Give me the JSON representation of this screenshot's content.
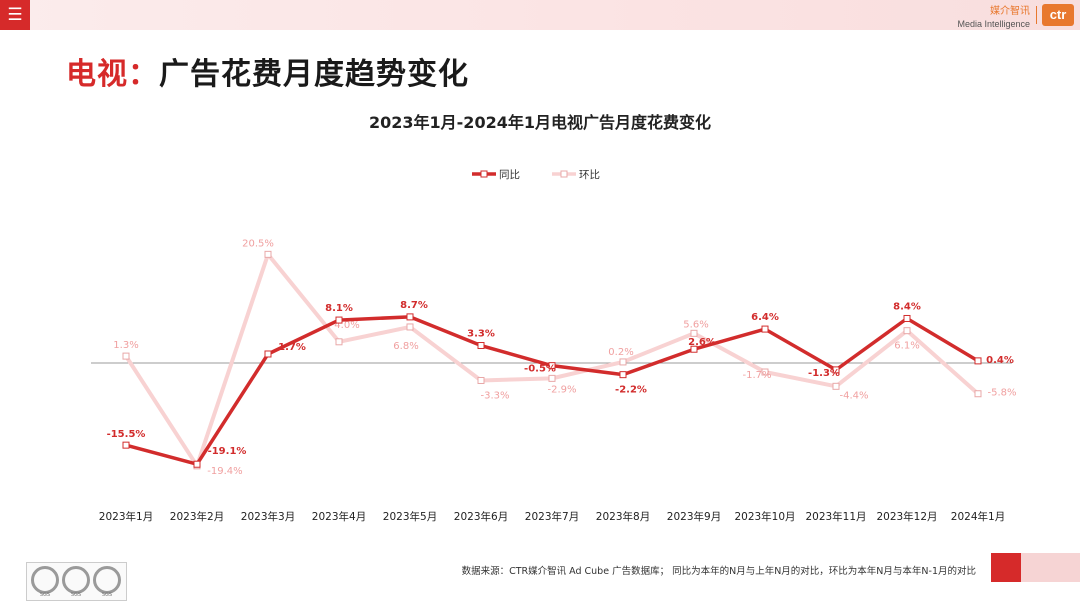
{
  "header": {
    "menu_icon": "hamburger-icon",
    "brand_cn": "媒介智讯",
    "brand_en": "Media Intelligence",
    "logo_text": "ctr",
    "accent_color": "#d62a2a",
    "brand_color": "#e8782e"
  },
  "page": {
    "title_prefix": "电视：",
    "title_main": "广告花费月度趋势变化"
  },
  "chart_data": {
    "type": "line",
    "title": "2023年1月-2024年1月电视广告月度花费变化",
    "categories": [
      "2023年1月",
      "2023年2月",
      "2023年3月",
      "2023年4月",
      "2023年5月",
      "2023年6月",
      "2023年7月",
      "2023年8月",
      "2023年9月",
      "2023年10月",
      "2023年11月",
      "2023年12月",
      "2024年1月"
    ],
    "series": [
      {
        "name": "同比",
        "color": "#d22c2c",
        "values": [
          -15.5,
          -19.1,
          1.7,
          8.1,
          8.7,
          3.3,
          -0.5,
          -2.2,
          2.6,
          6.4,
          -1.3,
          8.4,
          0.4
        ],
        "labels": [
          "-15.5%",
          "-19.1%",
          "1.7%",
          "8.1%",
          "8.7%",
          "3.3%",
          "-0.5%",
          "-2.2%",
          "2.6%",
          "6.4%",
          "-1.3%",
          "8.4%",
          "0.4%"
        ]
      },
      {
        "name": "环比",
        "color": "#f8d2d2",
        "label_color": "#f0a0a0",
        "values": [
          1.3,
          -19.4,
          20.5,
          4.0,
          6.8,
          -3.3,
          -2.9,
          0.2,
          5.6,
          -1.7,
          -4.4,
          6.1,
          -5.8
        ],
        "labels": [
          "1.3%",
          "-19.4%",
          "20.5%",
          "4.0%",
          "6.8%",
          "-3.3%",
          "-2.9%",
          "0.2%",
          "5.6%",
          "-1.7%",
          "-4.4%",
          "6.1%",
          "-5.8%"
        ]
      }
    ],
    "xlabel": "",
    "ylabel": "",
    "ylim": [
      -20,
      21
    ],
    "zero_line": true,
    "legend": "top-center"
  },
  "footer": {
    "source_note": "数据来源：CTR媒介智讯 Ad Cube 广告数据库； 同比为本年的N月与上年N月的对比，环比为本年N月与本年N-1月的对比",
    "seal_label": "SGS"
  }
}
